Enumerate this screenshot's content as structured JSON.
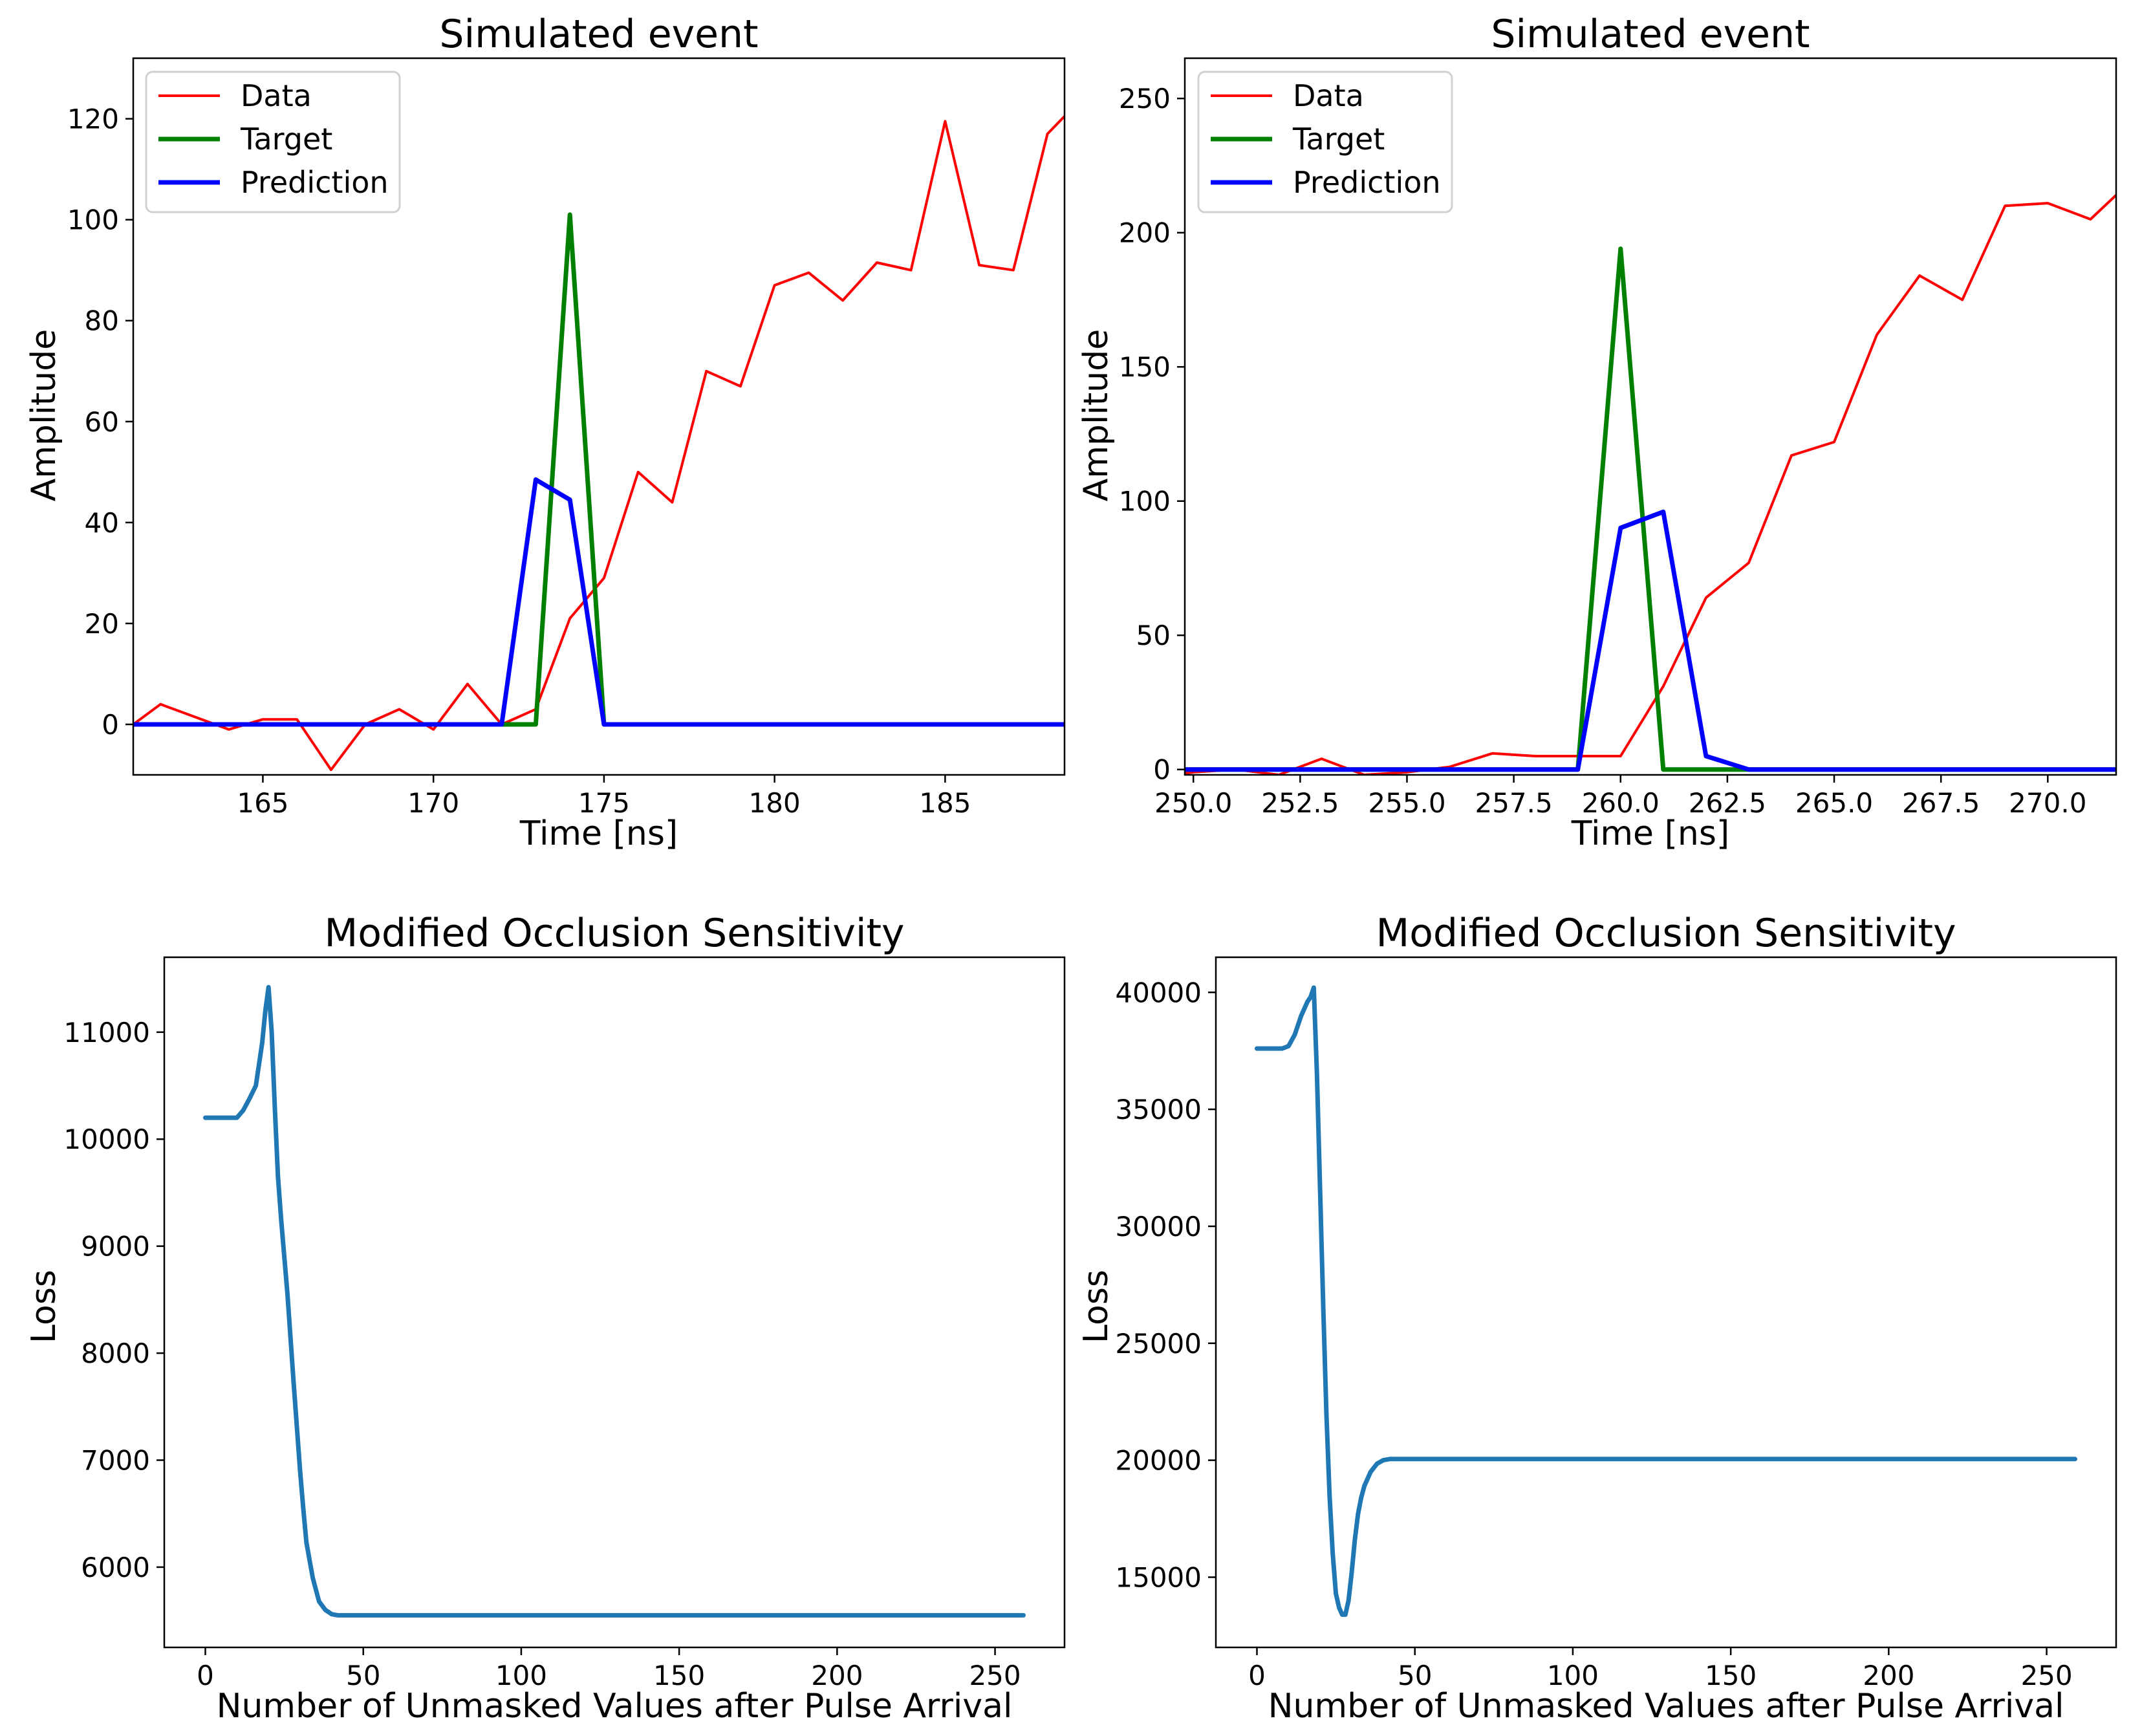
{
  "colors": {
    "data": "#ff0000",
    "target": "#008000",
    "prediction": "#0000ff",
    "loss": "#1f77b4",
    "axis": "#000000"
  },
  "chart_data": [
    {
      "id": "top-left",
      "type": "line",
      "title": "Simulated event",
      "xlabel": "Time [ns]",
      "ylabel": "Amplitude",
      "xlim": [
        161.2,
        188.5
      ],
      "ylim": [
        -10,
        132
      ],
      "xticks": [
        165,
        170,
        175,
        180,
        185
      ],
      "xtick_labels": [
        "165",
        "170",
        "175",
        "180",
        "185"
      ],
      "yticks": [
        0,
        20,
        40,
        60,
        80,
        100,
        120
      ],
      "ytick_labels": [
        "0",
        "20",
        "40",
        "60",
        "80",
        "100",
        "120"
      ],
      "legend": "top-left",
      "series": [
        {
          "name": "Data",
          "color_key": "data",
          "width": 4,
          "x": [
            161,
            162,
            163,
            164,
            165,
            166,
            167,
            168,
            169,
            170,
            171,
            172,
            173,
            174,
            175,
            176,
            177,
            178,
            179,
            180,
            181,
            182,
            183,
            184,
            185,
            186,
            187,
            188,
            189
          ],
          "y": [
            -1,
            4,
            1.5,
            -1,
            1,
            1,
            -9,
            0,
            3,
            -1,
            8,
            0,
            3,
            21,
            29,
            50,
            44,
            70,
            67,
            87,
            89.5,
            84,
            91.5,
            90,
            119.5,
            91,
            90,
            117,
            124
          ]
        },
        {
          "name": "Target",
          "color_key": "target",
          "width": 7,
          "x": [
            161,
            172,
            173,
            174,
            175,
            189
          ],
          "y": [
            0,
            0,
            0,
            101,
            0,
            0
          ]
        },
        {
          "name": "Prediction",
          "color_key": "prediction",
          "width": 7,
          "x": [
            161,
            172,
            173,
            174,
            175,
            189
          ],
          "y": [
            0,
            0,
            48.5,
            44.5,
            0,
            0
          ]
        }
      ]
    },
    {
      "id": "top-right",
      "type": "line",
      "title": "Simulated event",
      "xlabel": "Time [ns]",
      "ylabel": "Amplitude",
      "xlim": [
        249.8,
        271.6
      ],
      "ylim": [
        -2,
        265
      ],
      "xticks": [
        250,
        252.5,
        255,
        257.5,
        260,
        262.5,
        265,
        267.5,
        270
      ],
      "xtick_labels": [
        "250.0",
        "252.5",
        "255.0",
        "257.5",
        "260.0",
        "262.5",
        "265.0",
        "267.5",
        "270.0"
      ],
      "yticks": [
        0,
        50,
        100,
        150,
        200,
        250
      ],
      "ytick_labels": [
        "0",
        "50",
        "100",
        "150",
        "200",
        "250"
      ],
      "legend": "top-left",
      "series": [
        {
          "name": "Data",
          "color_key": "data",
          "width": 4,
          "x": [
            249,
            250,
            251,
            252,
            253,
            254,
            255,
            256,
            257,
            258,
            259,
            260,
            261,
            262,
            263,
            264,
            265,
            266,
            267,
            268,
            269,
            270,
            271,
            272
          ],
          "y": [
            -3,
            -1,
            0,
            -2,
            4,
            -2,
            -1,
            1,
            6,
            5,
            5,
            5,
            31,
            64,
            77,
            117,
            122,
            162,
            184,
            175,
            210,
            211,
            205,
            220
          ]
        },
        {
          "name": "Target",
          "color_key": "target",
          "width": 7,
          "x": [
            249,
            259,
            260,
            261,
            272
          ],
          "y": [
            0,
            0,
            194,
            0,
            0
          ]
        },
        {
          "name": "Prediction",
          "color_key": "prediction",
          "width": 7,
          "x": [
            249,
            259,
            260,
            261,
            262,
            263,
            272
          ],
          "y": [
            0,
            0,
            90,
            96,
            5,
            0,
            0
          ]
        }
      ]
    },
    {
      "id": "bottom-left",
      "type": "line",
      "title": "Modified Occlusion Sensitivity",
      "xlabel": "Number of Unmasked Values after Pulse Arrival",
      "ylabel": "Loss",
      "xlim": [
        -13,
        272
      ],
      "ylim": [
        5250,
        11700
      ],
      "xticks": [
        0,
        50,
        100,
        150,
        200,
        250
      ],
      "xtick_labels": [
        "0",
        "50",
        "100",
        "150",
        "200",
        "250"
      ],
      "yticks": [
        6000,
        7000,
        8000,
        9000,
        10000,
        11000
      ],
      "ytick_labels": [
        "6000",
        "7000",
        "8000",
        "9000",
        "10000",
        "11000"
      ],
      "series": [
        {
          "name": "Loss",
          "color_key": "loss",
          "width": 7,
          "x": [
            0,
            5,
            10,
            12,
            14,
            16,
            17,
            18,
            19,
            20,
            21,
            22,
            23,
            24,
            26,
            28,
            30,
            31,
            32,
            34,
            36,
            38,
            40,
            42,
            45,
            50,
            100,
            150,
            200,
            259
          ],
          "y": [
            10200,
            10200,
            10200,
            10270,
            10380,
            10500,
            10700,
            10900,
            11200,
            11420,
            11000,
            10300,
            9650,
            9250,
            8550,
            7700,
            6900,
            6550,
            6230,
            5900,
            5680,
            5600,
            5560,
            5550,
            5550,
            5550,
            5550,
            5550,
            5550,
            5550
          ]
        }
      ]
    },
    {
      "id": "bottom-right",
      "type": "line",
      "title": "Modified Occlusion Sensitivity",
      "xlabel": "Number of Unmasked Values after Pulse Arrival",
      "ylabel": "Loss",
      "xlim": [
        -13,
        272
      ],
      "ylim": [
        12000,
        41500
      ],
      "xticks": [
        0,
        50,
        100,
        150,
        200,
        250
      ],
      "xtick_labels": [
        "0",
        "50",
        "100",
        "150",
        "200",
        "250"
      ],
      "yticks": [
        15000,
        20000,
        25000,
        30000,
        35000,
        40000
      ],
      "ytick_labels": [
        "15000",
        "20000",
        "25000",
        "30000",
        "35000",
        "40000"
      ],
      "series": [
        {
          "name": "Loss",
          "color_key": "loss",
          "width": 7,
          "x": [
            0,
            4,
            8,
            10,
            12,
            14,
            16,
            17,
            18,
            19,
            20,
            21,
            22,
            23,
            24,
            25,
            26,
            27,
            28,
            29,
            30,
            31,
            32,
            33,
            34,
            36,
            38,
            40,
            42,
            45,
            50,
            100,
            150,
            200,
            259
          ],
          "y": [
            37600,
            37600,
            37600,
            37700,
            38200,
            39000,
            39600,
            39800,
            40200,
            36500,
            31500,
            26500,
            22000,
            18500,
            16000,
            14300,
            13700,
            13400,
            13400,
            14000,
            15200,
            16600,
            17700,
            18400,
            18900,
            19500,
            19850,
            20000,
            20050,
            20050,
            20050,
            20050,
            20050,
            20050,
            20050
          ]
        }
      ]
    }
  ]
}
